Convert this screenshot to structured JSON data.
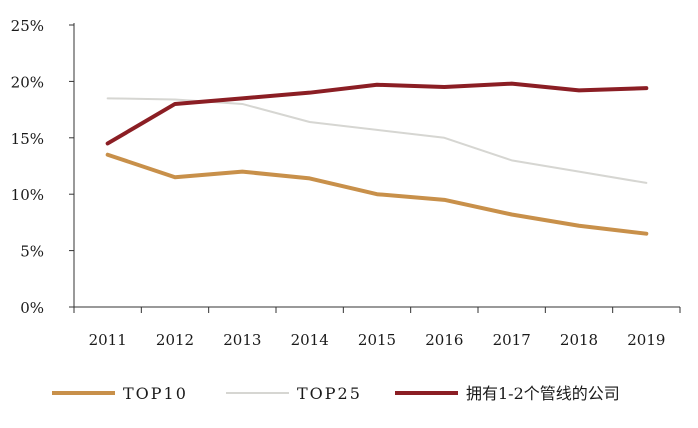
{
  "chart_data": {
    "type": "line",
    "title": "",
    "xlabel": "",
    "ylabel": "",
    "categories": [
      "2011",
      "2012",
      "2013",
      "2014",
      "2015",
      "2016",
      "2017",
      "2018",
      "2019"
    ],
    "y_ticks": [
      "0%",
      "5%",
      "10%",
      "15%",
      "20%",
      "25%"
    ],
    "ylim": [
      0,
      25
    ],
    "grid": false,
    "legend_position": "bottom",
    "series": [
      {
        "name": "TOP10",
        "color": "#c8904a",
        "values": [
          13.5,
          11.5,
          12.0,
          11.4,
          10.0,
          9.5,
          8.2,
          7.2,
          6.5
        ]
      },
      {
        "name": "TOP25",
        "color": "#d6d6d2",
        "values": [
          18.5,
          18.4,
          18.0,
          16.4,
          15.7,
          15.0,
          13.0,
          12.0,
          11.0
        ]
      },
      {
        "name": "拥有1-2个管线的公司",
        "color": "#8b1e24",
        "values": [
          14.5,
          18.0,
          18.5,
          19.0,
          19.7,
          19.5,
          19.8,
          19.2,
          19.4
        ]
      }
    ]
  }
}
